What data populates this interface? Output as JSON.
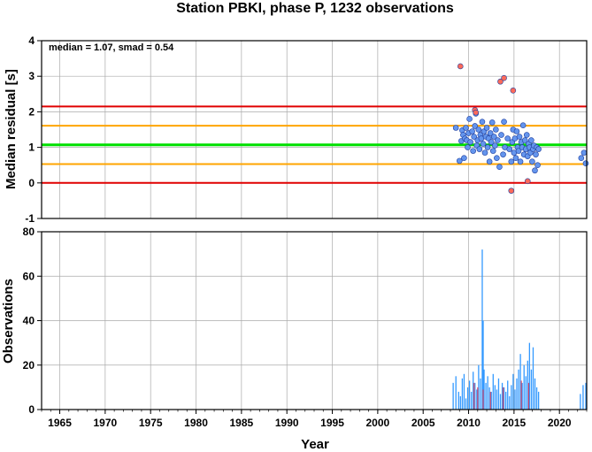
{
  "chart_data": [
    {
      "type": "scatter",
      "title": "Station PBKI, phase P, 1232 observations",
      "annotation": "median = 1.07, smad = 0.54",
      "xlabel": "",
      "ylabel": "Median residual [s]",
      "xlim": [
        1963,
        2023
      ],
      "ylim": [
        -1,
        4
      ],
      "yticks": [
        "-1",
        "0",
        "1",
        "2",
        "3",
        "4"
      ],
      "grid": true,
      "colors": {
        "median": "#00e000",
        "smad": "#ffa500",
        "limit": "#e00000",
        "point": "#6495ed",
        "outlier": "#ff6a5a"
      },
      "reference_lines": [
        {
          "name": "median",
          "y": 1.07
        },
        {
          "name": "smad_upper",
          "y": 1.61
        },
        {
          "name": "smad_lower",
          "y": 0.53
        },
        {
          "name": "limit_upper",
          "y": 2.15
        },
        {
          "name": "limit_lower",
          "y": 0.0
        }
      ],
      "series": [
        {
          "kind": "inlier",
          "points": [
            [
              2008.6,
              1.55
            ],
            [
              2009.0,
              0.62
            ],
            [
              2009.2,
              1.18
            ],
            [
              2009.3,
              1.48
            ],
            [
              2009.4,
              1.35
            ],
            [
              2009.5,
              0.7
            ],
            [
              2009.6,
              1.25
            ],
            [
              2009.7,
              1.55
            ],
            [
              2009.8,
              1.2
            ],
            [
              2009.9,
              1.0
            ],
            [
              2010.0,
              1.4
            ],
            [
              2010.1,
              1.8
            ],
            [
              2010.2,
              1.15
            ],
            [
              2010.4,
              1.45
            ],
            [
              2010.5,
              0.9
            ],
            [
              2010.6,
              1.3
            ],
            [
              2010.7,
              1.6
            ],
            [
              2010.8,
              1.95
            ],
            [
              2010.9,
              1.05
            ],
            [
              2011.0,
              1.2
            ],
            [
              2011.1,
              1.5
            ],
            [
              2011.2,
              0.95
            ],
            [
              2011.3,
              1.35
            ],
            [
              2011.4,
              1.25
            ],
            [
              2011.5,
              1.72
            ],
            [
              2011.6,
              1.1
            ],
            [
              2011.7,
              1.45
            ],
            [
              2011.8,
              0.85
            ],
            [
              2011.9,
              1.3
            ],
            [
              2012.0,
              1.55
            ],
            [
              2012.1,
              1.0
            ],
            [
              2012.2,
              1.25
            ],
            [
              2012.3,
              0.6
            ],
            [
              2012.4,
              1.4
            ],
            [
              2012.5,
              1.15
            ],
            [
              2012.6,
              1.7
            ],
            [
              2012.7,
              0.9
            ],
            [
              2012.8,
              1.3
            ],
            [
              2012.9,
              1.05
            ],
            [
              2013.0,
              1.5
            ],
            [
              2013.1,
              0.7
            ],
            [
              2013.2,
              1.2
            ],
            [
              2013.4,
              0.45
            ],
            [
              2013.6,
              1.35
            ],
            [
              2013.8,
              0.8
            ],
            [
              2013.9,
              1.72
            ],
            [
              2014.0,
              1.0
            ],
            [
              2014.3,
              1.25
            ],
            [
              2014.5,
              0.95
            ],
            [
              2014.7,
              0.6
            ],
            [
              2014.8,
              1.15
            ],
            [
              2014.9,
              1.5
            ],
            [
              2015.0,
              0.85
            ],
            [
              2015.1,
              1.25
            ],
            [
              2015.2,
              0.7
            ],
            [
              2015.3,
              1.45
            ],
            [
              2015.4,
              1.0
            ],
            [
              2015.5,
              0.9
            ],
            [
              2015.6,
              1.3
            ],
            [
              2015.7,
              0.6
            ],
            [
              2015.8,
              1.15
            ],
            [
              2015.9,
              1.0
            ],
            [
              2016.0,
              1.62
            ],
            [
              2016.1,
              0.8
            ],
            [
              2016.2,
              1.2
            ],
            [
              2016.3,
              0.95
            ],
            [
              2016.4,
              1.35
            ],
            [
              2016.5,
              0.75
            ],
            [
              2016.6,
              1.1
            ],
            [
              2016.7,
              1.0
            ],
            [
              2016.8,
              0.85
            ],
            [
              2016.9,
              1.2
            ],
            [
              2017.0,
              0.6
            ],
            [
              2017.1,
              0.95
            ],
            [
              2017.2,
              1.05
            ],
            [
              2017.3,
              0.35
            ],
            [
              2017.4,
              0.8
            ],
            [
              2017.5,
              1.0
            ],
            [
              2017.6,
              0.5
            ],
            [
              2017.7,
              0.95
            ],
            [
              2022.4,
              0.7
            ],
            [
              2022.7,
              0.85
            ],
            [
              2022.9,
              0.55
            ]
          ]
        },
        {
          "kind": "outlier",
          "points": [
            [
              2009.1,
              3.28
            ],
            [
              2010.7,
              2.05
            ],
            [
              2010.8,
              1.98
            ],
            [
              2013.5,
              2.85
            ],
            [
              2013.9,
              2.95
            ],
            [
              2014.9,
              2.6
            ],
            [
              2014.7,
              -0.22
            ],
            [
              2016.5,
              0.05
            ]
          ]
        }
      ]
    },
    {
      "type": "bar",
      "xlabel": "Year",
      "ylabel": "Observations",
      "xlim": [
        1963,
        2023
      ],
      "ylim": [
        0,
        80
      ],
      "xticks": [
        "1965",
        "1970",
        "1975",
        "1980",
        "1985",
        "1990",
        "1995",
        "2000",
        "2005",
        "2010",
        "2015",
        "2020"
      ],
      "yticks": [
        "0",
        "20",
        "40",
        "60",
        "80"
      ],
      "grid": true,
      "colors": {
        "bar": "#3399ff",
        "bar_alt": "#e0405a"
      },
      "bars": [
        [
          2008.3,
          12
        ],
        [
          2008.6,
          15
        ],
        [
          2008.9,
          8
        ],
        [
          2009.1,
          6
        ],
        [
          2009.3,
          14
        ],
        [
          2009.5,
          16
        ],
        [
          2009.7,
          5
        ],
        [
          2009.9,
          10
        ],
        [
          2010.1,
          13
        ],
        [
          2010.3,
          8
        ],
        [
          2010.5,
          17
        ],
        [
          2010.7,
          12
        ],
        [
          2010.9,
          9
        ],
        [
          2011.1,
          20
        ],
        [
          2011.3,
          14
        ],
        [
          2011.5,
          72
        ],
        [
          2011.6,
          40
        ],
        [
          2011.7,
          18
        ],
        [
          2011.9,
          12
        ],
        [
          2012.1,
          15
        ],
        [
          2012.3,
          10
        ],
        [
          2012.5,
          8
        ],
        [
          2012.7,
          16
        ],
        [
          2012.9,
          11
        ],
        [
          2013.1,
          9
        ],
        [
          2013.3,
          14
        ],
        [
          2013.5,
          7
        ],
        [
          2013.7,
          12
        ],
        [
          2013.9,
          10
        ],
        [
          2014.1,
          8
        ],
        [
          2014.3,
          13
        ],
        [
          2014.5,
          6
        ],
        [
          2014.7,
          11
        ],
        [
          2014.9,
          16
        ],
        [
          2015.1,
          9
        ],
        [
          2015.3,
          14
        ],
        [
          2015.5,
          18
        ],
        [
          2015.7,
          25
        ],
        [
          2015.9,
          12
        ],
        [
          2016.1,
          20
        ],
        [
          2016.3,
          15
        ],
        [
          2016.5,
          22
        ],
        [
          2016.7,
          30
        ],
        [
          2016.9,
          18
        ],
        [
          2017.1,
          28
        ],
        [
          2017.3,
          14
        ],
        [
          2017.5,
          10
        ],
        [
          2017.7,
          8
        ],
        [
          2022.3,
          7
        ],
        [
          2022.6,
          11
        ],
        [
          2022.9,
          12
        ]
      ],
      "alt_bars": [
        [
          2010.6,
          12
        ],
        [
          2011.0,
          10
        ],
        [
          2011.6,
          9
        ],
        [
          2012.4,
          8
        ],
        [
          2013.8,
          10
        ],
        [
          2015.8,
          13
        ],
        [
          2016.6,
          12
        ]
      ]
    }
  ]
}
